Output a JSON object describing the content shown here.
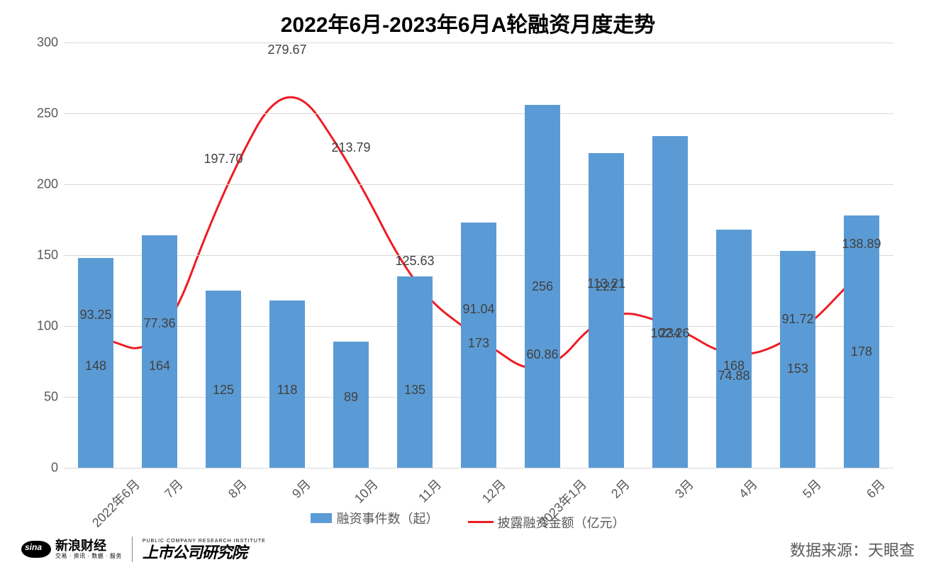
{
  "chart": {
    "type": "bar+line",
    "title": "2022年6月-2023年6月A轮融资月度走势",
    "title_fontsize": 30,
    "title_color": "#000000",
    "background_color": "#ffffff",
    "grid_color": "#d9d9d9",
    "axis_label_color": "#595959",
    "axis_label_fontsize": 18,
    "data_label_fontsize": 18,
    "data_label_color": "#404040",
    "y_axis": {
      "min": 0,
      "max": 300,
      "step": 50,
      "ticks": [
        0,
        50,
        100,
        150,
        200,
        250,
        300
      ]
    },
    "categories": [
      "2022年6月",
      "7月",
      "8月",
      "9月",
      "10月",
      "11月",
      "12月",
      "2023年1月",
      "2月",
      "3月",
      "4月",
      "5月",
      "6月"
    ],
    "bar_series": {
      "name": "融资事件数（起）",
      "color": "#5b9bd5",
      "bar_width_ratio": 0.55,
      "values": [
        148,
        164,
        125,
        118,
        89,
        135,
        173,
        256,
        222,
        234,
        168,
        153,
        178
      ],
      "label_y_values": [
        72,
        72,
        55,
        55,
        50,
        55,
        88,
        128,
        128,
        95,
        72,
        70,
        82
      ]
    },
    "line_series": {
      "name": "披露融资金额（亿元）",
      "color": "#ed1c24",
      "line_width": 3,
      "marker": "none",
      "smooth": true,
      "values": [
        93.25,
        77.36,
        197.7,
        279.67,
        213.79,
        125.63,
        91.04,
        60.86,
        113.21,
        102.26,
        74.88,
        91.72,
        138.89
      ],
      "label_y_values": [
        108,
        102,
        218,
        295,
        226,
        146,
        112,
        80,
        130,
        95,
        65,
        105,
        158
      ]
    },
    "legend": {
      "position": "bottom",
      "items": [
        {
          "type": "bar",
          "label": "融资事件数（起）",
          "color": "#5b9bd5"
        },
        {
          "type": "line",
          "label": "披露融资金额（亿元）",
          "color": "#ed1c24"
        }
      ]
    }
  },
  "footer": {
    "logo_sina_cn": "新浪财经",
    "logo_sina_sub": "交易 · 资讯 · 数据 · 服务",
    "logo_inst_en": "PUBLIC COMPANY RESEARCH INSTITUTE",
    "logo_inst_cn": "上市公司研究院",
    "source_label": "数据来源：天眼查"
  }
}
